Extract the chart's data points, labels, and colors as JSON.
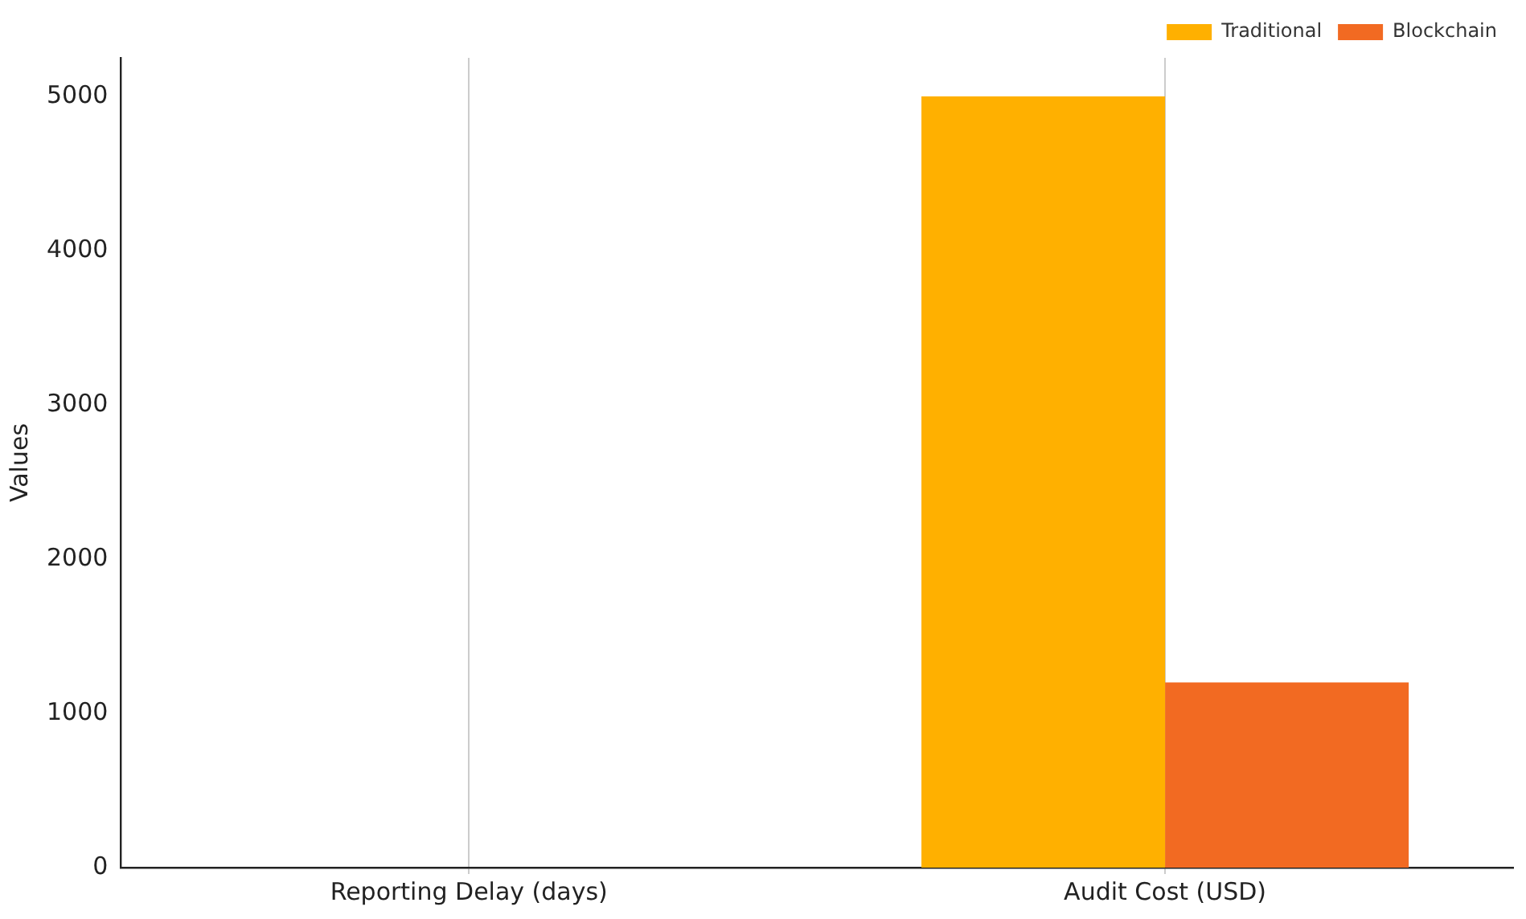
{
  "chart_data": {
    "type": "bar",
    "ylabel": "Values",
    "categories": [
      "Reporting Delay (days)",
      "Audit Cost (USD)"
    ],
    "series": [
      {
        "name": "Traditional",
        "color": "#ffb000",
        "values": [
          0,
          5000
        ]
      },
      {
        "name": "Blockchain",
        "color": "#f26a22",
        "values": [
          0,
          1200
        ]
      }
    ],
    "ylim": [
      0,
      5250
    ],
    "yticks": [
      0,
      1000,
      2000,
      3000,
      4000,
      5000
    ],
    "grid": "x",
    "legend": "top right"
  }
}
